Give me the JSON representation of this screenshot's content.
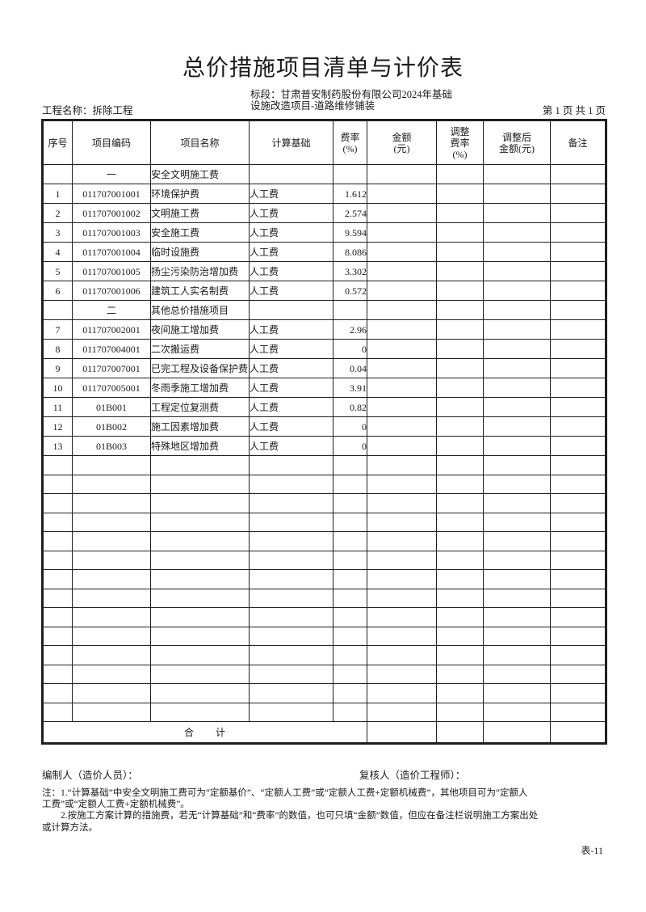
{
  "page": {
    "title": "总价措施项目清单与计价表",
    "project_label": "工程名称：拆除工程",
    "section_label_line1": "标段：甘肃普安制药股份有限公司2024年基础",
    "section_label_line2": "设施改造项目-道路维修铺装",
    "page_info": "第 1 页  共 1 页",
    "form_code": "表-11"
  },
  "table": {
    "headers": [
      "序号",
      "项目编码",
      "项目名称",
      "计算基础",
      "费率\n(%)",
      "金额\n(元)",
      "调整\n费率\n(%)",
      "调整后\n金额(元)",
      "备注"
    ],
    "rows": [
      {
        "type": "section",
        "code": "一",
        "name": "安全文明施工费"
      },
      {
        "type": "data",
        "no": "1",
        "code": "011707001001",
        "name": "环境保护费",
        "basis": "人工费",
        "rate": "1.612"
      },
      {
        "type": "data",
        "no": "2",
        "code": "011707001002",
        "name": "文明施工费",
        "basis": "人工费",
        "rate": "2.574"
      },
      {
        "type": "data",
        "no": "3",
        "code": "011707001003",
        "name": "安全施工费",
        "basis": "人工费",
        "rate": "9.594"
      },
      {
        "type": "data",
        "no": "4",
        "code": "011707001004",
        "name": "临时设施费",
        "basis": "人工费",
        "rate": "8.086"
      },
      {
        "type": "data",
        "no": "5",
        "code": "011707001005",
        "name": "扬尘污染防治增加费",
        "basis": "人工费",
        "rate": "3.302"
      },
      {
        "type": "data",
        "no": "6",
        "code": "011707001006",
        "name": "建筑工人实名制费",
        "basis": "人工费",
        "rate": "0.572"
      },
      {
        "type": "section",
        "code": "二",
        "name": "其他总价措施项目"
      },
      {
        "type": "data",
        "no": "7",
        "code": "011707002001",
        "name": "夜间施工增加费",
        "basis": "人工费",
        "rate": "2.96"
      },
      {
        "type": "data",
        "no": "8",
        "code": "011707004001",
        "name": "二次搬运费",
        "basis": "人工费",
        "rate": "0"
      },
      {
        "type": "data",
        "no": "9",
        "code": "011707007001",
        "name": "已完工程及设备保护费",
        "basis": "人工费",
        "rate": "0.04"
      },
      {
        "type": "data",
        "no": "10",
        "code": "011707005001",
        "name": "冬雨季施工增加费",
        "basis": "人工费",
        "rate": "3.91"
      },
      {
        "type": "data",
        "no": "11",
        "code": "01B001",
        "name": "工程定位复测费",
        "basis": "人工费",
        "rate": "0.82"
      },
      {
        "type": "data",
        "no": "12",
        "code": "01B002",
        "name": "施工因素增加费",
        "basis": "人工费",
        "rate": "0"
      },
      {
        "type": "data",
        "no": "13",
        "code": "01B003",
        "name": "特殊地区增加费",
        "basis": "人工费",
        "rate": "0"
      }
    ],
    "empty_row_count": 14,
    "total_label": "合　　计"
  },
  "footer": {
    "preparer_label": "编制人（造价人员）：",
    "reviewer_label": "复核人（造价工程师）：",
    "notes": [
      "注：1.“计算基础”中安全文明施工费可为“定额基价”、“定额人工费”或“定额人工费+定额机械费”，其他项目可为“定额人",
      "工费”或“定额人工费+定额机械费”。",
      "　　2.按施工方案计算的措施费，若无“计算基础”和“费率”的数值，也可只填“金额”数值，但应在备注栏说明施工方案出处",
      "或计算方法。"
    ]
  }
}
